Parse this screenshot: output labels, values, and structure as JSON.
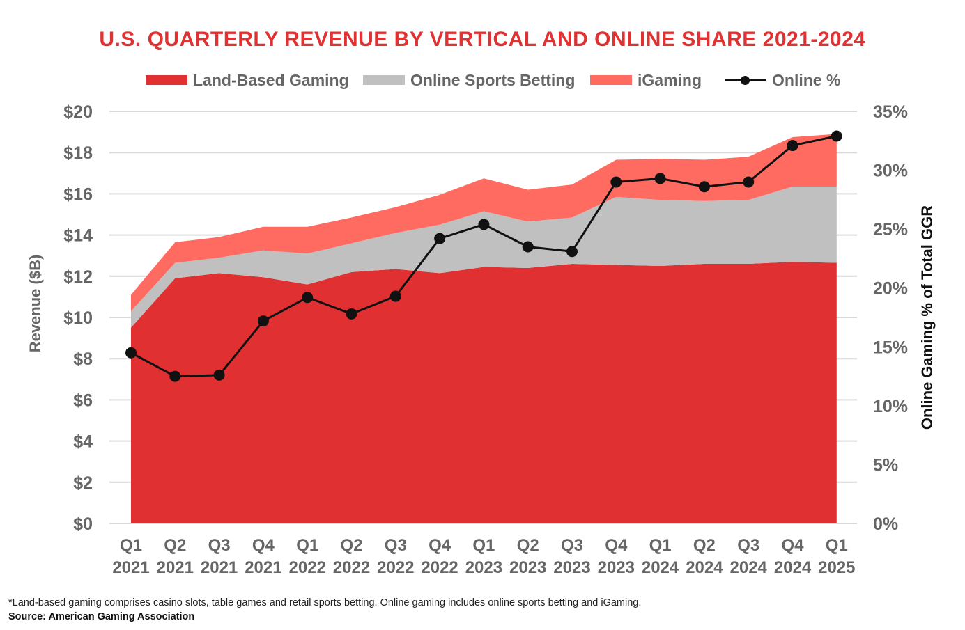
{
  "title": "U.S. QUARTERLY REVENUE BY VERTICAL AND ONLINE SHARE 2021-2024",
  "legend": {
    "land": "Land-Based Gaming",
    "osb": "Online Sports Betting",
    "igaming": "iGaming",
    "online": "Online %"
  },
  "colors": {
    "land": "#e03032",
    "osb": "#c0c0c0",
    "igaming": "#ff6b61",
    "online": "#111111",
    "title": "#e03232",
    "axis_text": "#666666"
  },
  "footnote": "*Land-based gaming comprises casino slots, table games and retail sports betting. Online gaming includes online sports betting and iGaming.",
  "source": "Source: American Gaming Association",
  "chart_data": {
    "type": "area",
    "title": "U.S. QUARTERLY REVENUE BY VERTICAL AND ONLINE SHARE 2021-2024",
    "ylabel": "Revenue ($B)",
    "y2label": "Online Gaming % of Total GGR",
    "ylim": [
      0,
      20
    ],
    "y2lim": [
      0,
      35
    ],
    "yticks": [
      "$0",
      "$2",
      "$4",
      "$6",
      "$8",
      "$10",
      "$12",
      "$14",
      "$16",
      "$18",
      "$20"
    ],
    "y2ticks": [
      "0%",
      "5%",
      "10%",
      "15%",
      "20%",
      "25%",
      "30%",
      "35%"
    ],
    "grid": true,
    "legend_position": "top",
    "categories": [
      [
        "Q1",
        "2021"
      ],
      [
        "Q2",
        "2021"
      ],
      [
        "Q3",
        "2021"
      ],
      [
        "Q4",
        "2021"
      ],
      [
        "Q1",
        "2022"
      ],
      [
        "Q2",
        "2022"
      ],
      [
        "Q3",
        "2022"
      ],
      [
        "Q4",
        "2022"
      ],
      [
        "Q1",
        "2023"
      ],
      [
        "Q2",
        "2023"
      ],
      [
        "Q3",
        "2023"
      ],
      [
        "Q4",
        "2023"
      ],
      [
        "Q1",
        "2024"
      ],
      [
        "Q2",
        "2024"
      ],
      [
        "Q3",
        "2024"
      ],
      [
        "Q4",
        "2024"
      ],
      [
        "Q1",
        "2025"
      ]
    ],
    "series": [
      {
        "name": "Land-Based Gaming",
        "type": "stacked-area",
        "axis": "left",
        "values": [
          9.5,
          11.9,
          12.15,
          11.95,
          11.6,
          12.2,
          12.35,
          12.15,
          12.45,
          12.4,
          12.6,
          12.55,
          12.5,
          12.6,
          12.6,
          12.7,
          12.65
        ]
      },
      {
        "name": "Online Sports Betting",
        "type": "stacked-area",
        "axis": "left",
        "values": [
          0.8,
          0.75,
          0.75,
          1.3,
          1.5,
          1.4,
          1.75,
          2.35,
          2.7,
          2.25,
          2.25,
          3.3,
          3.2,
          3.05,
          3.1,
          3.65,
          3.7
        ]
      },
      {
        "name": "iGaming",
        "type": "stacked-area",
        "axis": "left",
        "values": [
          0.8,
          1.0,
          1.0,
          1.15,
          1.3,
          1.25,
          1.25,
          1.45,
          1.6,
          1.55,
          1.6,
          1.8,
          2.0,
          2.0,
          2.1,
          2.4,
          2.55
        ]
      },
      {
        "name": "Online %",
        "type": "line",
        "axis": "right",
        "values": [
          14.5,
          12.5,
          12.6,
          17.2,
          19.2,
          17.8,
          19.3,
          24.2,
          25.4,
          23.5,
          23.1,
          29.0,
          29.3,
          28.6,
          29.0,
          32.1,
          32.9
        ]
      }
    ]
  }
}
